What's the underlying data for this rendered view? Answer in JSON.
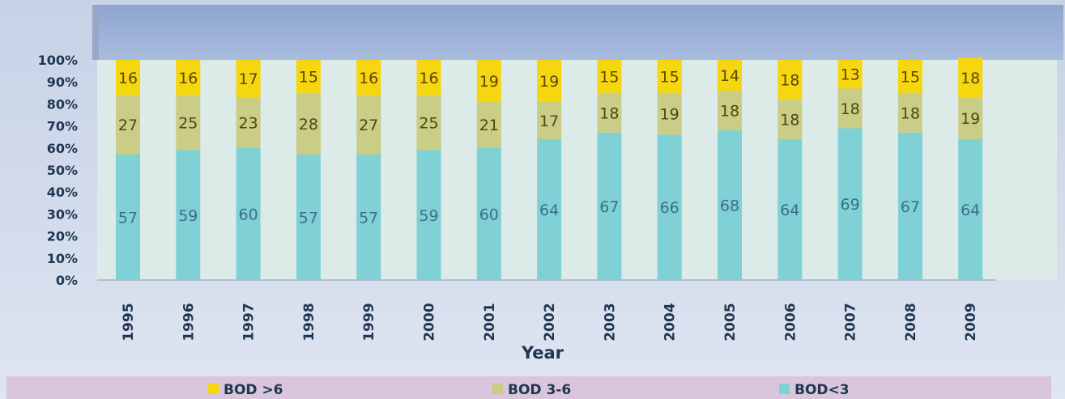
{
  "chart_data": {
    "type": "bar",
    "stacked": true,
    "percent": true,
    "xlabel": "Year",
    "ylim": [
      0,
      100
    ],
    "yticks": [
      "0%",
      "10%",
      "20%",
      "30%",
      "40%",
      "50%",
      "60%",
      "70%",
      "80%",
      "90%",
      "100%"
    ],
    "categories": [
      "1995",
      "1996",
      "1997",
      "1998",
      "1999",
      "2000",
      "2001",
      "2002",
      "2003",
      "2004",
      "2005",
      "2006",
      "2007",
      "2008",
      "2009"
    ],
    "series": [
      {
        "name": "BOD<3",
        "color": "#7fd1d6",
        "values": [
          57,
          59,
          60,
          57,
          57,
          59,
          60,
          64,
          67,
          66,
          68,
          64,
          69,
          67,
          64
        ]
      },
      {
        "name": "BOD 3-6",
        "color": "#c9cd86",
        "values": [
          27,
          25,
          23,
          28,
          27,
          25,
          21,
          17,
          18,
          19,
          18,
          18,
          18,
          18,
          19
        ]
      },
      {
        "name": "BOD >6",
        "color": "#f6d60f",
        "values": [
          16,
          16,
          17,
          15,
          16,
          16,
          19,
          19,
          15,
          15,
          14,
          18,
          13,
          15,
          18
        ]
      }
    ],
    "legend_order": [
      "BOD >6",
      "BOD 3-6",
      "BOD<3"
    ],
    "legend_position": "bottom",
    "grid": false,
    "plot_background": "#dceae8"
  }
}
